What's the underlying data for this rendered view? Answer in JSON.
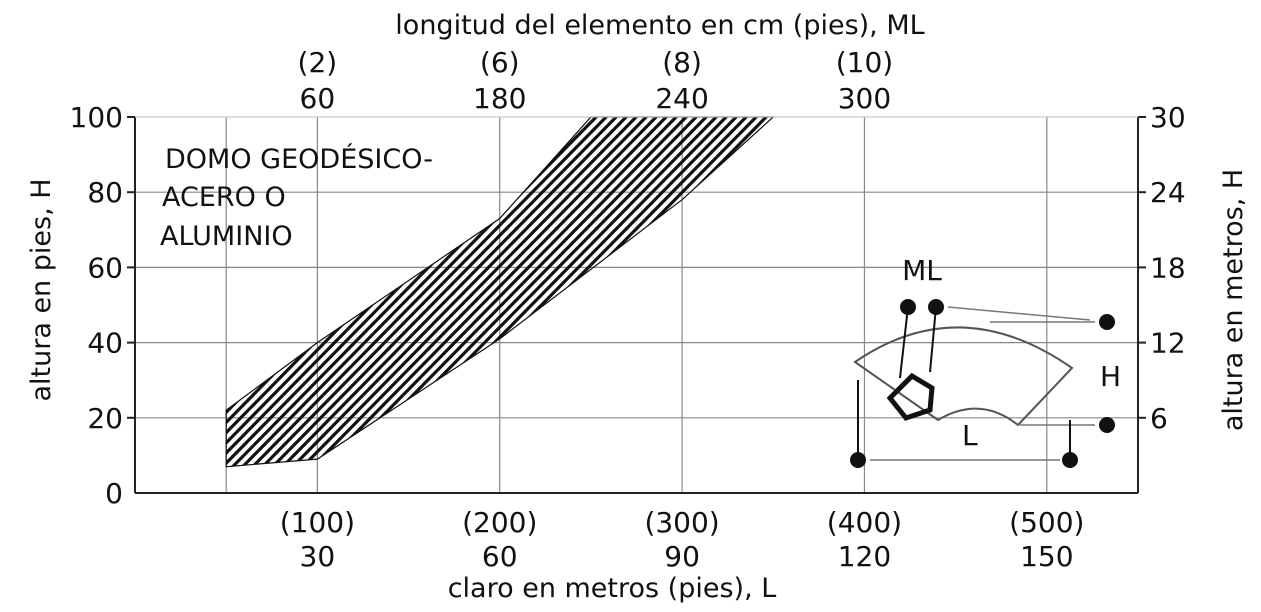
{
  "chart_data": {
    "type": "area",
    "title": "DOMO GEODÉSICO- ACERO O ALUMINIO",
    "region_label": [
      "DOMO GEODÉSICO-",
      "ACERO O",
      "ALUMINIO"
    ],
    "top_axis_label": "longitud del elemento en cm (pies), ML",
    "top_ticks": [
      {
        "x": 30,
        "cm": "60",
        "ft": "(2)"
      },
      {
        "x": 60,
        "cm": "180",
        "ft": "(6)"
      },
      {
        "x": 90,
        "cm": "240",
        "ft": "(8)"
      },
      {
        "x": 120,
        "cm": "300",
        "ft": "(10)"
      }
    ],
    "xlabel": "claro en metros (pies), L",
    "x_ticks": [
      {
        "x": 30,
        "m": "30",
        "ft": "(100)"
      },
      {
        "x": 60,
        "m": "60",
        "ft": "(200)"
      },
      {
        "x": 90,
        "m": "90",
        "ft": "(300)"
      },
      {
        "x": 120,
        "m": "120",
        "ft": "(400)"
      },
      {
        "x": 150,
        "m": "150",
        "ft": "(500)"
      }
    ],
    "xlim": [
      0,
      165
    ],
    "ylabel_left": "altura en pies, H",
    "left_ticks": [
      "0",
      "20",
      "40",
      "60",
      "80",
      "100"
    ],
    "ylim_left": [
      0,
      100
    ],
    "ylabel_right": "altura en metros, H",
    "right_ticks": [
      {
        "y": 20,
        "label": "6"
      },
      {
        "y": 40,
        "label": "12"
      },
      {
        "y": 60,
        "label": "18"
      },
      {
        "y": 80,
        "label": "24"
      },
      {
        "y": 100,
        "label": "30"
      }
    ],
    "grid": true,
    "band": {
      "upper": [
        [
          15,
          22
        ],
        [
          30,
          40
        ],
        [
          60,
          73
        ],
        [
          75,
          100
        ],
        [
          105,
          100
        ]
      ],
      "lower": [
        [
          15,
          7
        ],
        [
          30,
          9
        ],
        [
          60,
          41
        ],
        [
          90,
          78
        ],
        [
          105,
          100
        ]
      ]
    },
    "inset_labels": {
      "ml": "ML",
      "h": "H",
      "l": "L"
    }
  }
}
